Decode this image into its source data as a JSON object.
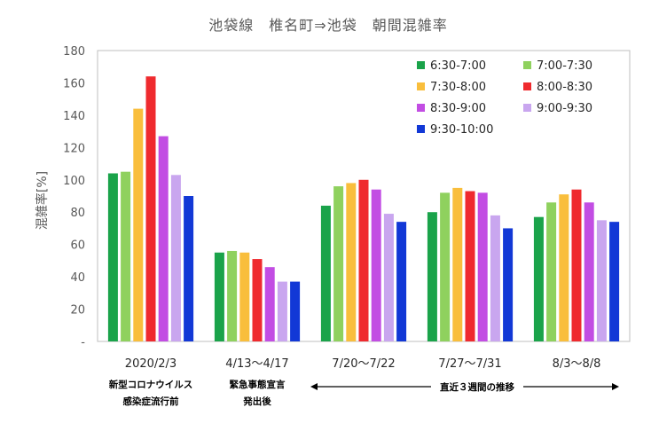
{
  "chart_data": {
    "type": "bar",
    "title": "池袋線　椎名町⇒池袋　朝間混雑率",
    "ylabel": "混雑率[%]",
    "xlabel": "",
    "ylim": [
      0,
      180
    ],
    "yticks": [
      "-",
      "20",
      "40",
      "60",
      "80",
      "100",
      "120",
      "140",
      "160",
      "180"
    ],
    "grid": false,
    "legend_position": "top-right",
    "categories": [
      "2020/2/3",
      "4/13～4/17",
      "7/20～7/22",
      "7/27～7/31",
      "8/3～8/8"
    ],
    "category_notes": [
      [
        "新型コロナウイルス",
        "感染症流行前"
      ],
      [
        "緊急事態宣言",
        "発出後"
      ],
      [],
      [],
      []
    ],
    "range_annotation": {
      "text": "直近３週間の推移",
      "from_category": 2,
      "to_category": 4
    },
    "series": [
      {
        "name": "6:30-7:00",
        "color": "#1aa34a",
        "values": [
          104,
          55,
          84,
          80,
          77
        ]
      },
      {
        "name": "7:00-7:30",
        "color": "#8fd15e",
        "values": [
          105,
          56,
          96,
          92,
          86
        ]
      },
      {
        "name": "7:30-8:00",
        "color": "#f9be3c",
        "values": [
          144,
          55,
          98,
          95,
          91
        ]
      },
      {
        "name": "8:00-8:30",
        "color": "#ef2a2e",
        "values": [
          164,
          51,
          100,
          93,
          94
        ]
      },
      {
        "name": "8:30-9:00",
        "color": "#c24de3",
        "values": [
          127,
          46,
          94,
          92,
          86
        ]
      },
      {
        "name": "9:00-9:30",
        "color": "#c9a6ef",
        "values": [
          103,
          37,
          79,
          78,
          75
        ]
      },
      {
        "name": "9:30-10:00",
        "color": "#1238d6",
        "values": [
          90,
          37,
          74,
          70,
          74
        ]
      }
    ]
  }
}
